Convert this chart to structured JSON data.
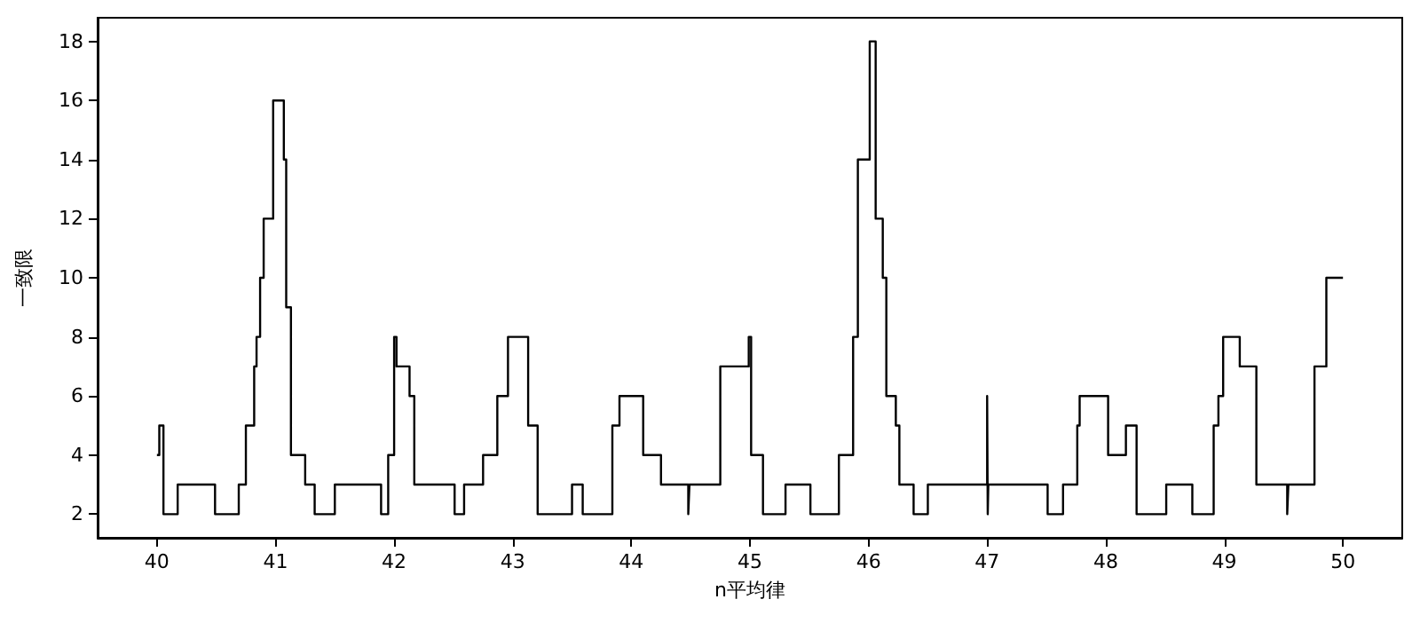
{
  "chart_data": {
    "type": "step",
    "xlabel": "n平均律",
    "ylabel": "一致限",
    "color": "#000000",
    "x": [
      40.0,
      40.02,
      40.055,
      40.175,
      40.49,
      40.69,
      40.75,
      40.82,
      40.84,
      40.87,
      40.9,
      40.98,
      41.07,
      41.09,
      41.13,
      41.25,
      41.33,
      41.5,
      41.89,
      41.95,
      42.0,
      42.02,
      42.13,
      42.17,
      42.51,
      42.59,
      42.75,
      42.87,
      42.96,
      43.13,
      43.21,
      43.5,
      43.59,
      43.84,
      43.9,
      44.1,
      44.25,
      44.48,
      44.49,
      44.75,
      44.99,
      45.01,
      45.11,
      45.3,
      45.51,
      45.75,
      45.87,
      45.91,
      46.01,
      46.06,
      46.12,
      46.15,
      46.23,
      46.26,
      46.38,
      46.5,
      47.0,
      47.005,
      47.01,
      47.51,
      47.64,
      47.76,
      47.78,
      48.02,
      48.17,
      48.26,
      48.51,
      48.73,
      48.91,
      48.95,
      48.99,
      49.13,
      49.27,
      49.53,
      49.54,
      49.76,
      49.86,
      50.0
    ],
    "values": [
      4,
      5,
      2,
      3,
      2,
      3,
      5,
      7,
      8,
      10,
      12,
      16,
      14,
      9,
      4,
      3,
      2,
      3,
      2,
      4,
      8,
      7,
      6,
      3,
      2,
      3,
      4,
      6,
      8,
      5,
      2,
      3,
      2,
      5,
      6,
      4,
      3,
      2,
      3,
      7,
      8,
      4,
      2,
      3,
      2,
      4,
      8,
      14,
      18,
      12,
      10,
      6,
      5,
      3,
      2,
      3,
      6,
      2,
      3,
      2,
      3,
      5,
      6,
      4,
      5,
      2,
      3,
      2,
      5,
      6,
      8,
      7,
      3,
      2,
      3,
      7,
      10,
      10
    ],
    "xlim": [
      39.5,
      50.5
    ],
    "xticks": [
      40,
      41,
      42,
      43,
      44,
      45,
      46,
      47,
      48,
      49,
      50
    ],
    "ylim": [
      1.2,
      18.8
    ],
    "yticks": [
      2,
      4,
      6,
      8,
      10,
      12,
      14,
      16,
      18
    ],
    "grid": false,
    "marker": "none",
    "line_style": "solid"
  }
}
